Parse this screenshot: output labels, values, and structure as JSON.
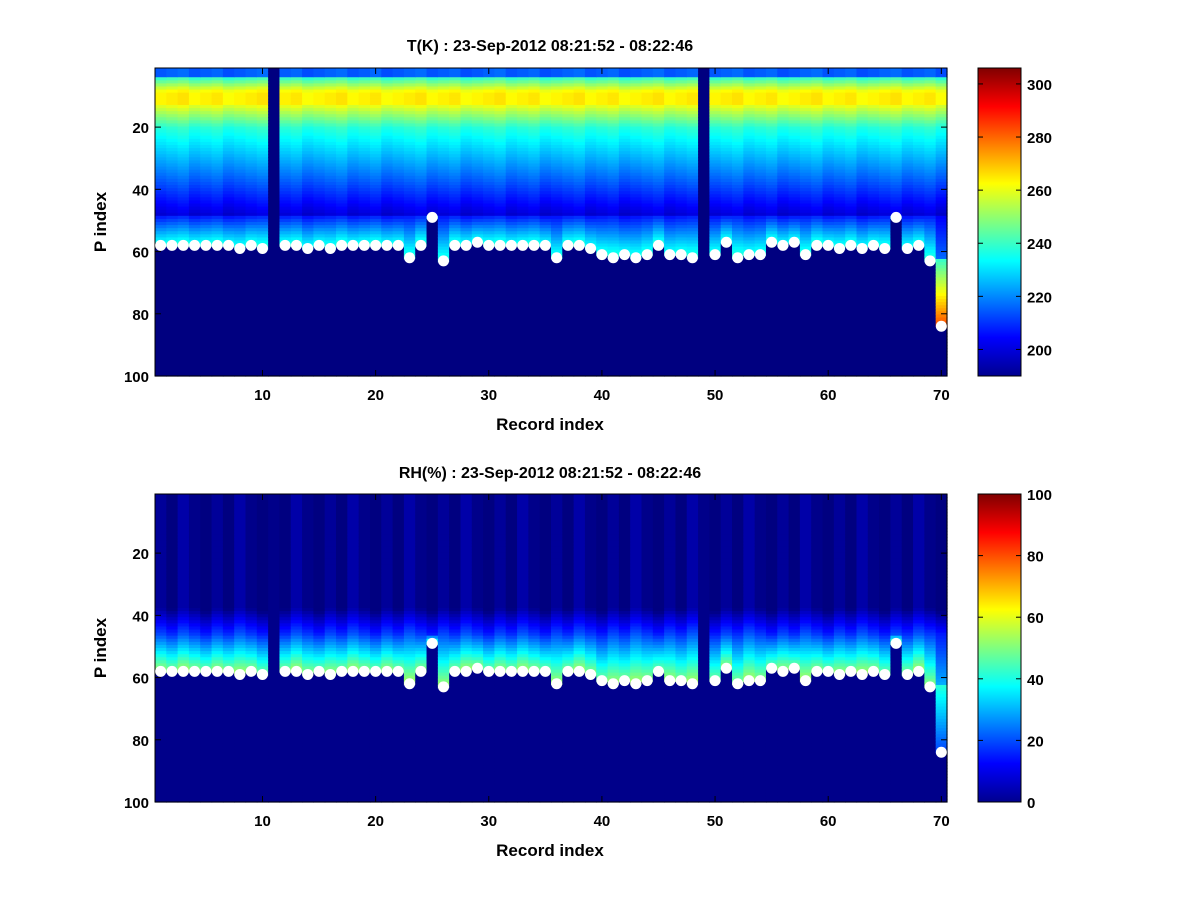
{
  "chart_data": [
    {
      "type": "heatmap",
      "title": "T(K) : 23-Sep-2012 08:21:52 - 08:22:46",
      "xlabel": "Record index",
      "ylabel": "P index",
      "xlim": [
        0.5,
        70.5
      ],
      "ylim": [
        100,
        1
      ],
      "xticks": [
        10,
        20,
        30,
        40,
        50,
        60,
        70
      ],
      "yticks": [
        20,
        40,
        60,
        80,
        100
      ],
      "colorbar": {
        "clim": [
          190,
          306
        ],
        "ticks": [
          200,
          220,
          240,
          260,
          280,
          300
        ],
        "colormap": "jet"
      },
      "surface_index": [
        58,
        58,
        58,
        58,
        58,
        58,
        58,
        59,
        58,
        59,
        null,
        58,
        58,
        59,
        58,
        59,
        58,
        58,
        58,
        58,
        58,
        58,
        62,
        58,
        49,
        63,
        58,
        58,
        57,
        58,
        58,
        58,
        58,
        58,
        58,
        62,
        58,
        58,
        59,
        61,
        62,
        61,
        62,
        61,
        58,
        61,
        61,
        62,
        null,
        61,
        57,
        62,
        61,
        61,
        57,
        58,
        57,
        61,
        58,
        58,
        59,
        58,
        59,
        58,
        59,
        49,
        59,
        58,
        63,
        84
      ],
      "profile_description": "cold near top (~205 K), warm band near P index 8-12 (~265 K), cooling to ~200 K near P index 45-55, warming to ~238 K just above surface point; below surface fill value"
    },
    {
      "type": "heatmap",
      "title": "RH(%) : 23-Sep-2012 08:21:52 - 08:22:46",
      "xlabel": "Record index",
      "ylabel": "P index",
      "xlim": [
        0.5,
        70.5
      ],
      "ylim": [
        100,
        1
      ],
      "xticks": [
        10,
        20,
        30,
        40,
        50,
        60,
        70
      ],
      "yticks": [
        20,
        40,
        60,
        80,
        100
      ],
      "colorbar": {
        "clim": [
          0,
          100
        ],
        "ticks": [
          0,
          20,
          40,
          60,
          80,
          100
        ],
        "colormap": "jet"
      },
      "surface_index": [
        58,
        58,
        58,
        58,
        58,
        58,
        58,
        59,
        58,
        59,
        null,
        58,
        58,
        59,
        58,
        59,
        58,
        58,
        58,
        58,
        58,
        58,
        62,
        58,
        49,
        63,
        58,
        58,
        57,
        58,
        58,
        58,
        58,
        58,
        58,
        62,
        58,
        58,
        59,
        61,
        62,
        61,
        62,
        61,
        58,
        61,
        61,
        62,
        null,
        61,
        57,
        62,
        61,
        61,
        57,
        58,
        57,
        61,
        58,
        58,
        59,
        58,
        59,
        58,
        59,
        49,
        59,
        58,
        63,
        84
      ],
      "profile_description": "near 0 % above P index ~38, increasing to ~40-65 % just above surface point; below surface 0"
    }
  ]
}
